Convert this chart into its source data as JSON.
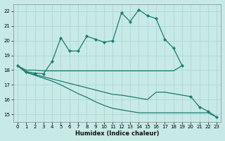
{
  "xlabel": "Humidex (Indice chaleur)",
  "background_color": "#c8eae6",
  "grid_color": "#aad8d3",
  "line_color": "#1a7a6e",
  "xlim": [
    -0.5,
    23.5
  ],
  "ylim": [
    14.5,
    22.5
  ],
  "xticks": [
    0,
    1,
    2,
    3,
    4,
    5,
    6,
    7,
    8,
    9,
    10,
    11,
    12,
    13,
    14,
    15,
    16,
    17,
    18,
    19,
    20,
    21,
    22,
    23
  ],
  "yticks": [
    15,
    16,
    17,
    18,
    19,
    20,
    21,
    22
  ],
  "lines": [
    {
      "x": [
        0,
        1,
        2,
        3,
        4,
        5,
        6,
        7,
        8,
        9,
        10,
        11,
        12,
        13,
        14,
        15,
        16,
        17,
        18,
        19
      ],
      "y": [
        18.3,
        17.9,
        17.8,
        17.75,
        18.6,
        20.2,
        19.3,
        19.3,
        20.3,
        20.1,
        19.9,
        20.0,
        21.9,
        21.3,
        22.1,
        21.7,
        21.5,
        20.1,
        19.5,
        18.3
      ],
      "marker": true
    },
    {
      "x": [
        0,
        1,
        2,
        3,
        4,
        5,
        6,
        7,
        8,
        9,
        10,
        11,
        12,
        13,
        14,
        15,
        16,
        17,
        18,
        19
      ],
      "y": [
        18.3,
        18.0,
        18.0,
        17.95,
        17.95,
        17.95,
        17.95,
        17.95,
        17.95,
        17.95,
        17.95,
        17.95,
        17.95,
        17.95,
        17.95,
        17.95,
        17.95,
        17.95,
        17.95,
        18.3
      ],
      "marker": false
    },
    {
      "x": [
        0,
        1,
        2,
        3,
        4,
        5,
        6,
        7,
        8,
        9,
        10,
        11,
        12,
        13,
        14,
        15,
        16,
        17,
        18,
        19,
        20,
        21,
        22,
        23
      ],
      "y": [
        18.3,
        17.85,
        17.7,
        17.55,
        17.4,
        17.25,
        17.1,
        16.95,
        16.8,
        16.65,
        16.5,
        16.35,
        16.3,
        16.2,
        16.1,
        16.0,
        16.5,
        16.5,
        16.4,
        16.3,
        16.2,
        15.5,
        15.2,
        14.8
      ],
      "marker": true,
      "marker_indices": [
        20,
        21,
        22,
        23
      ]
    },
    {
      "x": [
        0,
        1,
        2,
        3,
        4,
        5,
        6,
        7,
        8,
        9,
        10,
        11,
        12,
        13,
        14,
        15,
        16,
        17,
        18,
        19,
        20,
        21,
        22,
        23
      ],
      "y": [
        18.3,
        17.85,
        17.65,
        17.45,
        17.25,
        17.0,
        16.7,
        16.4,
        16.15,
        15.85,
        15.6,
        15.4,
        15.3,
        15.2,
        15.1,
        15.1,
        15.1,
        15.1,
        15.1,
        15.1,
        15.1,
        15.1,
        15.1,
        14.8
      ],
      "marker": false
    }
  ]
}
